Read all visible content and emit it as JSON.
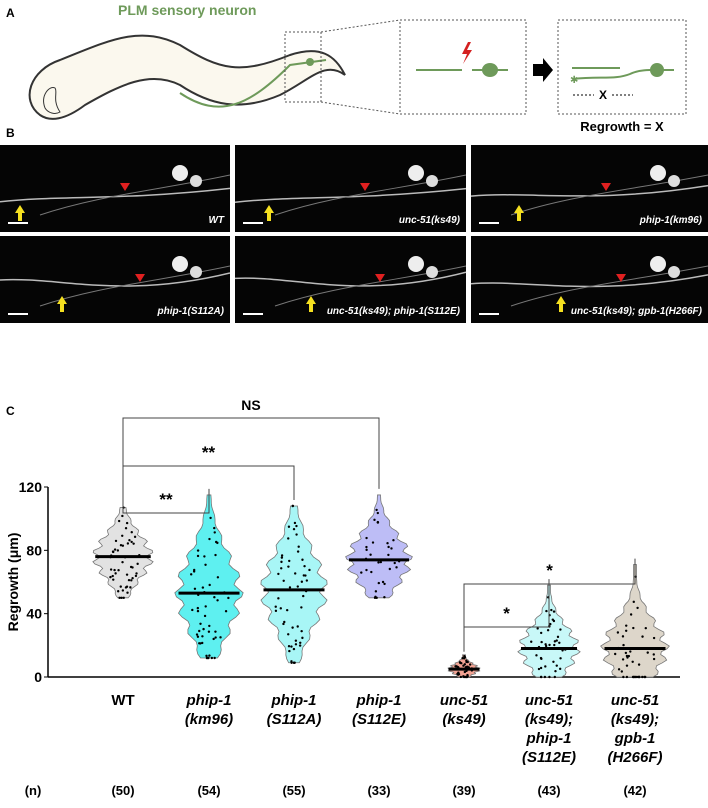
{
  "panels": {
    "a": "A",
    "b": "B",
    "c": "C"
  },
  "diagram": {
    "title": "PLM sensory neuron",
    "x_label": "X",
    "regrowth_label": "Regrowth = X",
    "neuron_color": "#6e9a5a",
    "laser_color": "#d42020"
  },
  "images": [
    {
      "label": "WT"
    },
    {
      "label": "unc-51(ks49)"
    },
    {
      "label": "phip-1(km96)"
    },
    {
      "label": "phip-1(S112A)"
    },
    {
      "label": "unc-51(ks49); phip-1(S112E)"
    },
    {
      "label": "unc-51(ks49); gpb-1(H266F)"
    }
  ],
  "chart_data": {
    "type": "violin",
    "ylabel": "Regrowth (μm)",
    "ylim": [
      0,
      120
    ],
    "yticks": [
      0,
      40,
      80,
      120
    ],
    "categories": [
      {
        "lines": [
          "WT"
        ],
        "italic": false,
        "n": "(50)",
        "median": 76,
        "min": 50,
        "max": 107,
        "count": 50,
        "color": "#e2e2e2"
      },
      {
        "lines": [
          "phip-1",
          "(km96)"
        ],
        "italic": true,
        "n": "(54)",
        "median": 53,
        "min": 12,
        "max": 115,
        "count": 54,
        "color": "#5ef0f0"
      },
      {
        "lines": [
          "phip-1",
          "(S112A)"
        ],
        "italic": true,
        "n": "(55)",
        "median": 55,
        "min": 9,
        "max": 108,
        "count": 55,
        "color": "#a8f6f6"
      },
      {
        "lines": [
          "phip-1",
          "(S112E)"
        ],
        "italic": true,
        "n": "(33)",
        "median": 74,
        "min": 50,
        "max": 115,
        "count": 33,
        "color": "#bdbdf6"
      },
      {
        "lines": [
          "unc-51",
          "(ks49)"
        ],
        "italic": true,
        "n": "(39)",
        "median": 5,
        "min": 0,
        "max": 14,
        "count": 39,
        "color": "#f2a393"
      },
      {
        "lines": [
          "unc-51",
          "(ks49);",
          "phip-1",
          "(S112E)"
        ],
        "italic": true,
        "n": "(43)",
        "median": 18,
        "min": 0,
        "max": 58,
        "count": 43,
        "color": "#c8f8f8"
      },
      {
        "lines": [
          "unc-51",
          "(ks49);",
          "gpb-1",
          "(H266F)"
        ],
        "italic": true,
        "n": "(42)",
        "median": 18,
        "min": 0,
        "max": 71,
        "count": 42,
        "color": "#ddd6ca"
      }
    ],
    "n_label": "(n)",
    "significance": [
      {
        "from": 0,
        "to": 3,
        "label": "NS"
      },
      {
        "from": 0,
        "to": 2,
        "label": "**"
      },
      {
        "from": 0,
        "to": 1,
        "label": "**"
      },
      {
        "from": 4,
        "to": 6,
        "label": "*"
      },
      {
        "from": 4,
        "to": 5,
        "label": "*"
      }
    ]
  }
}
